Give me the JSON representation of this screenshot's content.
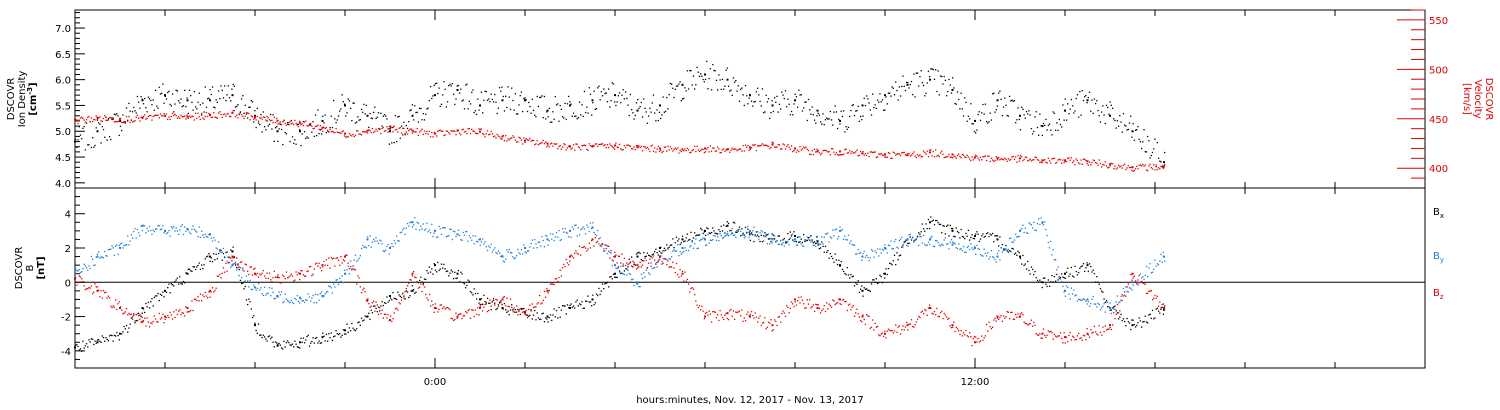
{
  "chart_data": [
    {
      "type": "scatter",
      "panel": "top",
      "ylabel_lines": [
        "DSCOVR",
        "Ion Density",
        "[cm",
        "-3",
        "]"
      ],
      "y2label_lines": [
        "DSCOVR",
        "Velocity",
        "[km/s]"
      ],
      "ylim": [
        3.9,
        7.35
      ],
      "y_ticks": [
        4.0,
        4.5,
        5.0,
        5.5,
        6.0,
        6.5,
        7.0
      ],
      "y_tick_labels": [
        "4.0",
        "4.5",
        "5.0",
        "5.5",
        "6.0",
        "6.5",
        "7.0"
      ],
      "y2lim": [
        380,
        560
      ],
      "y2_ticks": [
        400,
        450,
        500,
        550
      ],
      "y2_tick_labels": [
        "400",
        "450",
        "500",
        "550"
      ],
      "series": [
        {
          "color": "#000000",
          "x": [
            -8.0,
            -7.5,
            -7.0,
            -6.5,
            -6.0,
            -5.5,
            -5.0,
            -4.5,
            -4.0,
            -3.5,
            -3.0,
            -2.5,
            -2.0,
            -1.5,
            -1.0,
            -0.5,
            0.0,
            0.5,
            1.0,
            1.5,
            2.0,
            2.5,
            3.0,
            3.5,
            4.0,
            4.5,
            5.0,
            5.5,
            6.0,
            6.5,
            7.0,
            7.5,
            8.0,
            8.5,
            9.0,
            9.5,
            10.0,
            10.5,
            11.0,
            11.5,
            12.0,
            12.5,
            13.0,
            13.5,
            14.0,
            14.5,
            15.0,
            15.5,
            16.2
          ],
          "y": [
            4.8,
            5.0,
            5.2,
            5.6,
            5.7,
            5.6,
            5.6,
            5.7,
            5.3,
            5.0,
            5.0,
            5.2,
            5.5,
            5.3,
            5.0,
            5.3,
            5.7,
            5.8,
            5.5,
            5.6,
            5.6,
            5.4,
            5.5,
            5.6,
            5.7,
            5.4,
            5.5,
            5.9,
            6.1,
            6.0,
            5.7,
            5.5,
            5.6,
            5.4,
            5.2,
            5.5,
            5.7,
            5.9,
            6.0,
            5.8,
            5.2,
            5.6,
            5.3,
            5.1,
            5.4,
            5.6,
            5.3,
            5.0,
            4.4
          ]
        },
        {
          "color": "#e00000",
          "axis": "right",
          "x": [
            -8.0,
            -7.5,
            -7.0,
            -6.5,
            -6.0,
            -5.5,
            -5.0,
            -4.5,
            -4.0,
            -3.5,
            -3.0,
            -2.5,
            -2.0,
            -1.5,
            -1.0,
            -0.5,
            0.0,
            0.5,
            1.0,
            1.5,
            2.0,
            2.5,
            3.0,
            3.5,
            4.0,
            4.5,
            5.0,
            5.5,
            6.0,
            6.5,
            7.0,
            7.5,
            8.0,
            8.5,
            9.0,
            9.5,
            10.0,
            10.5,
            11.0,
            11.5,
            12.0,
            12.5,
            13.0,
            13.5,
            14.0,
            14.5,
            15.0,
            15.5,
            16.2
          ],
          "y": [
            449,
            451,
            450,
            451,
            453,
            452,
            454,
            456,
            452,
            448,
            446,
            441,
            435,
            438,
            440,
            438,
            435,
            438,
            437,
            432,
            428,
            425,
            422,
            422,
            423,
            421,
            420,
            419,
            420,
            419,
            421,
            424,
            420,
            417,
            417,
            415,
            414,
            414,
            416,
            414,
            411,
            410,
            410,
            408,
            408,
            407,
            404,
            401,
            402
          ]
        }
      ]
    },
    {
      "type": "scatter",
      "panel": "bottom",
      "ylabel_lines": [
        "DSCOVR",
        "B",
        "[nT]"
      ],
      "ylim": [
        -5.0,
        5.5
      ],
      "y_ticks": [
        -4,
        -2,
        0,
        2,
        4
      ],
      "y_tick_labels": [
        "-4",
        "-2",
        "0",
        "2",
        "4"
      ],
      "legend": [
        "B",
        "B",
        "B"
      ],
      "legend_subscripts": [
        "x",
        "y",
        "z"
      ],
      "series": [
        {
          "name": "B",
          "sub": "x",
          "color": "#000000",
          "x": [
            -8.0,
            -7.5,
            -7.0,
            -6.5,
            -6.0,
            -5.5,
            -5.0,
            -4.5,
            -4.0,
            -3.5,
            -3.0,
            -2.5,
            -2.0,
            -1.5,
            -1.0,
            -0.5,
            0.0,
            0.5,
            1.0,
            1.5,
            2.0,
            2.5,
            3.0,
            3.5,
            4.0,
            4.5,
            5.0,
            5.5,
            6.0,
            6.5,
            7.0,
            7.5,
            8.0,
            8.5,
            9.0,
            9.5,
            10.0,
            10.5,
            11.0,
            11.5,
            12.0,
            12.5,
            13.0,
            13.5,
            14.0,
            14.5,
            15.0,
            15.5,
            16.2
          ],
          "y": [
            -3.8,
            -3.5,
            -3.0,
            -1.5,
            -0.5,
            0.5,
            1.5,
            1.8,
            -2.5,
            -3.7,
            -3.5,
            -3.2,
            -2.8,
            -2.0,
            -0.8,
            -0.5,
            1.0,
            0.5,
            -1.0,
            -1.5,
            -1.8,
            -2.0,
            -1.5,
            -1.0,
            0.5,
            1.5,
            2.0,
            2.5,
            3.0,
            3.3,
            2.8,
            2.5,
            2.7,
            2.4,
            1.0,
            -0.5,
            0.5,
            2.5,
            3.5,
            3.0,
            2.7,
            2.5,
            1.5,
            0.0,
            0.5,
            1.0,
            -1.5,
            -2.5,
            -1.6
          ]
        },
        {
          "name": "B",
          "sub": "y",
          "color": "#1e7fd6",
          "x": [
            -8.0,
            -7.5,
            -7.0,
            -6.5,
            -6.0,
            -5.5,
            -5.0,
            -4.5,
            -4.0,
            -3.5,
            -3.0,
            -2.5,
            -2.0,
            -1.5,
            -1.0,
            -0.5,
            0.0,
            0.5,
            1.0,
            1.5,
            2.0,
            2.5,
            3.0,
            3.5,
            4.0,
            4.5,
            5.0,
            5.5,
            6.0,
            6.5,
            7.0,
            7.5,
            8.0,
            8.5,
            9.0,
            9.5,
            10.0,
            10.5,
            11.0,
            11.5,
            12.0,
            12.5,
            13.0,
            13.5,
            14.0,
            14.5,
            15.0,
            15.5,
            16.2
          ],
          "y": [
            0.5,
            1.5,
            2.0,
            3.3,
            3.0,
            3.1,
            2.8,
            1.0,
            -0.3,
            -0.8,
            -0.9,
            -0.8,
            0.5,
            2.5,
            2.0,
            3.5,
            3.0,
            2.8,
            2.5,
            1.5,
            2.0,
            2.5,
            3.0,
            3.2,
            1.0,
            0.0,
            1.5,
            2.0,
            2.5,
            2.8,
            3.0,
            2.5,
            2.5,
            2.3,
            3.0,
            1.5,
            2.0,
            2.5,
            2.5,
            2.2,
            2.0,
            1.5,
            3.0,
            3.5,
            -0.5,
            -1.0,
            -1.5,
            0.0,
            1.5
          ]
        },
        {
          "name": "B",
          "sub": "z",
          "color": "#e00000",
          "x": [
            -8.0,
            -7.5,
            -7.0,
            -6.5,
            -6.0,
            -5.5,
            -5.0,
            -4.5,
            -4.0,
            -3.5,
            -3.0,
            -2.5,
            -2.0,
            -1.5,
            -1.0,
            -0.5,
            0.0,
            0.5,
            1.0,
            1.5,
            2.0,
            2.5,
            3.0,
            3.5,
            4.0,
            4.5,
            5.0,
            5.5,
            6.0,
            6.5,
            7.0,
            7.5,
            8.0,
            8.5,
            9.0,
            9.5,
            10.0,
            10.5,
            11.0,
            11.5,
            12.0,
            12.5,
            13.0,
            13.5,
            14.0,
            14.5,
            15.0,
            15.5,
            16.2
          ],
          "y": [
            0.2,
            -0.5,
            -1.5,
            -2.3,
            -2.0,
            -1.5,
            -0.5,
            1.5,
            0.5,
            0.3,
            0.5,
            1.0,
            1.5,
            -1.0,
            -2.2,
            0.5,
            -1.5,
            -2.0,
            -1.5,
            -1.0,
            -1.8,
            -0.5,
            1.5,
            2.5,
            1.5,
            1.0,
            1.5,
            0.5,
            -2.0,
            -1.8,
            -2.0,
            -2.5,
            -1.0,
            -1.5,
            -1.0,
            -2.0,
            -3.0,
            -2.5,
            -1.5,
            -2.5,
            -3.5,
            -2.0,
            -2.0,
            -3.0,
            -3.2,
            -3.0,
            -2.5,
            0.5,
            -1.5
          ]
        }
      ]
    }
  ],
  "x_axis": {
    "xlim": [
      -8.0,
      22.0
    ],
    "major_ticks": [
      0,
      12
    ],
    "major_tick_labels": [
      "0:00",
      "12:00"
    ],
    "minor_ticks": [
      -6,
      -4,
      -2,
      2,
      4,
      6,
      8,
      10,
      14,
      16,
      18,
      20
    ],
    "xlabel": "hours:minutes, Nov. 12, 2017 - Nov. 13, 2017"
  }
}
